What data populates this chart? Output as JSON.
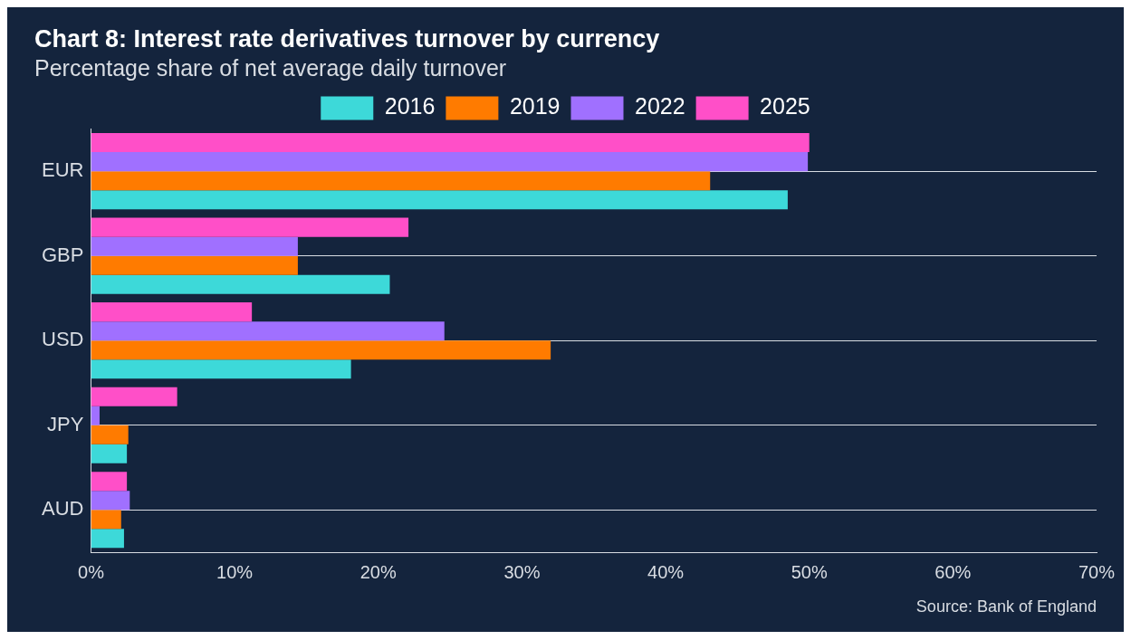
{
  "chart_data": {
    "type": "bar",
    "orientation": "horizontal",
    "title": "Chart 8: Interest rate derivatives turnover by currency",
    "subtitle": "Percentage share of net average daily turnover",
    "categories": [
      "EUR",
      "GBP",
      "USD",
      "JPY",
      "AUD"
    ],
    "series": [
      {
        "name": "2016",
        "color": "#3dd9d9",
        "values": [
          48.5,
          20.8,
          18.1,
          2.5,
          2.3
        ]
      },
      {
        "name": "2019",
        "color": "#ff7b00",
        "values": [
          43.1,
          14.4,
          32.0,
          2.6,
          2.1
        ]
      },
      {
        "name": "2022",
        "color": "#a070ff",
        "values": [
          49.9,
          14.4,
          24.6,
          0.6,
          2.7
        ]
      },
      {
        "name": "2025",
        "color": "#ff4fc8",
        "values": [
          50.0,
          22.1,
          11.2,
          6.0,
          2.5
        ]
      }
    ],
    "xlim": [
      0,
      70
    ],
    "xticks": [
      {
        "value": 0,
        "label": "0%"
      },
      {
        "value": 10,
        "label": "10%"
      },
      {
        "value": 20,
        "label": "20%"
      },
      {
        "value": 30,
        "label": "30%"
      },
      {
        "value": 40,
        "label": "40%"
      },
      {
        "value": 50,
        "label": "50%"
      },
      {
        "value": 60,
        "label": "60%"
      },
      {
        "value": 70,
        "label": "70%"
      }
    ],
    "grid": "y",
    "legend": "top",
    "annotations": [
      "Source: Bank of England"
    ]
  }
}
